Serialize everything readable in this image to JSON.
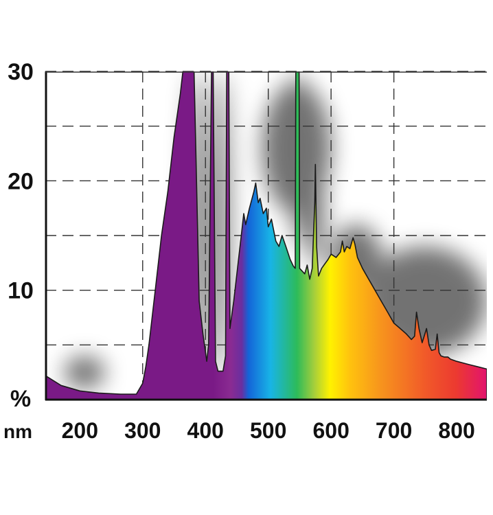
{
  "chart_data": {
    "type": "area",
    "title": "",
    "xlabel": "nm",
    "ylabel": "%",
    "xlim": [
      145,
      848
    ],
    "ylim": [
      0,
      30
    ],
    "grid": true,
    "x_ticks": [
      {
        "value": 200,
        "label": "200"
      },
      {
        "value": 300,
        "label": "300"
      },
      {
        "value": 400,
        "label": "400"
      },
      {
        "value": 500,
        "label": "500"
      },
      {
        "value": 600,
        "label": "600"
      },
      {
        "value": 700,
        "label": "700"
      },
      {
        "value": 800,
        "label": "800"
      }
    ],
    "y_ticks": [
      {
        "value": 10,
        "label": "10"
      },
      {
        "value": 20,
        "label": "20"
      },
      {
        "value": 30,
        "label": "30"
      }
    ],
    "y_grid": [
      5,
      10,
      15,
      20,
      25,
      30
    ],
    "x_grid": [
      300,
      400,
      500,
      600,
      700
    ],
    "series": [
      {
        "points": [
          [
            145,
            2.2
          ],
          [
            170,
            1.3
          ],
          [
            200,
            0.8
          ],
          [
            230,
            0.6
          ],
          [
            265,
            0.5
          ],
          [
            290,
            0.5
          ],
          [
            300,
            1.5
          ],
          [
            305,
            3.0
          ],
          [
            310,
            5.0
          ],
          [
            320,
            10.0
          ],
          [
            330,
            15.0
          ],
          [
            340,
            19.0
          ],
          [
            350,
            24.0
          ],
          [
            360,
            28.0
          ],
          [
            368,
            32.0
          ],
          [
            381,
            32.0
          ],
          [
            385,
            22.0
          ],
          [
            390,
            9.0
          ],
          [
            396,
            6.0
          ],
          [
            402,
            3.5
          ],
          [
            405,
            5.0
          ],
          [
            410,
            32.0
          ],
          [
            412,
            32.0
          ],
          [
            416,
            3.5
          ],
          [
            420,
            2.6
          ],
          [
            428,
            2.6
          ],
          [
            432,
            4.0
          ],
          [
            434,
            32.0
          ],
          [
            437,
            32.0
          ],
          [
            439,
            6.5
          ],
          [
            445,
            9.0
          ],
          [
            453,
            13.0
          ],
          [
            458,
            15.5
          ],
          [
            461,
            17.0
          ],
          [
            464,
            16.0
          ],
          [
            470,
            17.5
          ],
          [
            477,
            19.0
          ],
          [
            480,
            19.8
          ],
          [
            484,
            18.0
          ],
          [
            487,
            18.4
          ],
          [
            492,
            17.0
          ],
          [
            497,
            17.5
          ],
          [
            500,
            15.8
          ],
          [
            505,
            16.5
          ],
          [
            512,
            14.5
          ],
          [
            517,
            14.0
          ],
          [
            522,
            15.0
          ],
          [
            528,
            14.0
          ],
          [
            535,
            12.8
          ],
          [
            540,
            12.2
          ],
          [
            543,
            12.0
          ],
          [
            544,
            32.0
          ],
          [
            549,
            32.0
          ],
          [
            550,
            12.0
          ],
          [
            558,
            11.5
          ],
          [
            562,
            12.3
          ],
          [
            566,
            11.0
          ],
          [
            570,
            12.0
          ],
          [
            574,
            18.0
          ],
          [
            575,
            21.5
          ],
          [
            577,
            14.0
          ],
          [
            580,
            11.3
          ],
          [
            585,
            12.0
          ],
          [
            590,
            12.4
          ],
          [
            595,
            12.8
          ],
          [
            600,
            13.3
          ],
          [
            608,
            13.0
          ],
          [
            615,
            13.5
          ],
          [
            618,
            14.5
          ],
          [
            621,
            13.5
          ],
          [
            625,
            14.0
          ],
          [
            630,
            13.8
          ],
          [
            635,
            14.8
          ],
          [
            638,
            14.2
          ],
          [
            642,
            13.0
          ],
          [
            650,
            12.0
          ],
          [
            660,
            11.0
          ],
          [
            670,
            10.0
          ],
          [
            680,
            9.0
          ],
          [
            690,
            8.0
          ],
          [
            700,
            7.0
          ],
          [
            710,
            6.5
          ],
          [
            720,
            6.0
          ],
          [
            728,
            5.5
          ],
          [
            733,
            5.8
          ],
          [
            736,
            8.0
          ],
          [
            740,
            6.5
          ],
          [
            745,
            5.2
          ],
          [
            752,
            6.5
          ],
          [
            756,
            5.0
          ],
          [
            760,
            4.5
          ],
          [
            766,
            4.6
          ],
          [
            769,
            6.0
          ],
          [
            772,
            4.3
          ],
          [
            775,
            4.0
          ],
          [
            780,
            3.9
          ],
          [
            786,
            3.9
          ],
          [
            790,
            3.7
          ],
          [
            800,
            3.5
          ],
          [
            820,
            3.2
          ],
          [
            834,
            3.0
          ],
          [
            848,
            2.8
          ]
        ]
      }
    ],
    "glow_regions": [
      {
        "x": [
          370,
          395
        ],
        "y": [
          2,
          30
        ]
      },
      {
        "x": [
          405,
          420
        ],
        "y": [
          2,
          30
        ]
      },
      {
        "x": [
          425,
          440
        ],
        "y": [
          2,
          30
        ]
      },
      {
        "x": [
          490,
          600
        ],
        "y": [
          17,
          29
        ]
      },
      {
        "x": [
          535,
          562
        ],
        "y": [
          14,
          30
        ]
      },
      {
        "x": [
          560,
          590
        ],
        "y": [
          12,
          23
        ]
      },
      {
        "x": [
          600,
          680
        ],
        "y": [
          10,
          16
        ]
      },
      {
        "x": [
          650,
          848
        ],
        "y": [
          4,
          14
        ]
      },
      {
        "x": [
          175,
          240
        ],
        "y": [
          1,
          4
        ]
      }
    ],
    "colors": {
      "uv": "#7a1a86",
      "violet_400": "#8a2b92",
      "blue": "#1464d8",
      "cyan": "#18b4e6",
      "green": "#2dbb5a",
      "yellow": "#fff200",
      "orange": "#f7941d",
      "red": "#ec3a30",
      "magenta": "#e2136e",
      "outline": "#1a1a1a",
      "grid": "#333333",
      "glow": "#000000"
    }
  }
}
